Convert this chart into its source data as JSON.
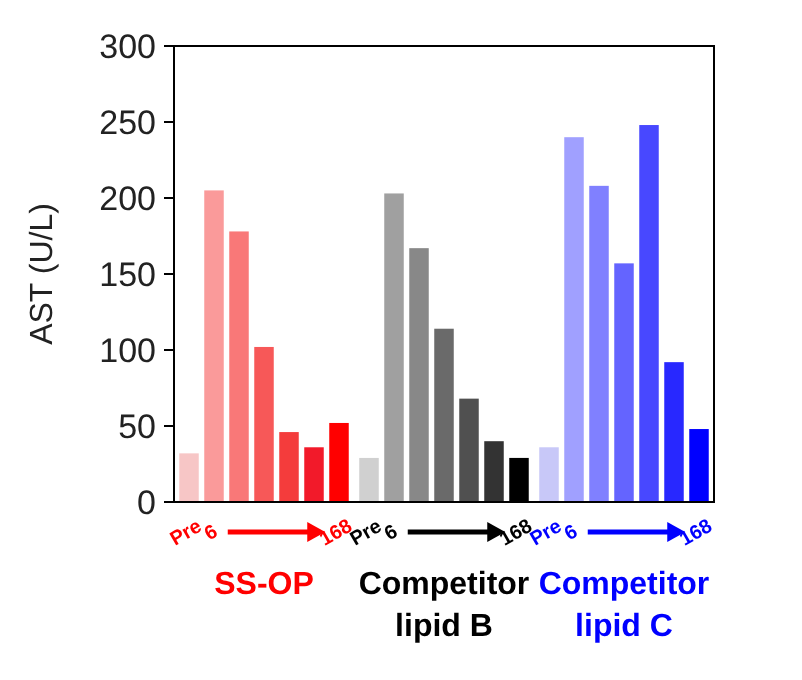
{
  "chart_data": [
    {
      "type": "bar",
      "ylabel": "AST (U/L)",
      "xlabel": "SS-OP",
      "categories": [
        "Pre",
        "6",
        null,
        null,
        null,
        null,
        "168"
      ],
      "values": [
        32,
        205,
        178,
        102,
        46,
        36,
        52
      ],
      "colors": [
        "#f7c6c6",
        "#fa9a9a",
        "#f97878",
        "#f75858",
        "#f43c3c",
        "#f21a2a",
        "#ff0000"
      ],
      "ylim": [
        0,
        300
      ],
      "yticks": [
        0,
        50,
        100,
        150,
        200,
        250,
        300
      ]
    },
    {
      "type": "bar",
      "xlabel": "Competitor lipid B",
      "categories": [
        "Pre",
        "6",
        null,
        null,
        null,
        null,
        "168"
      ],
      "values": [
        29,
        203,
        167,
        114,
        68,
        40,
        29
      ],
      "colors": [
        "#d0d0d0",
        "#a0a0a0",
        "#888888",
        "#6a6a6a",
        "#505050",
        "#333333",
        "#000000"
      ],
      "ylim": [
        0,
        300
      ],
      "tick_labels": "x"
    },
    {
      "type": "bar",
      "xlabel": "Competitor lipid C",
      "categories": [
        "Pre",
        "6",
        null,
        null,
        null,
        null,
        "168"
      ],
      "values": [
        36,
        240,
        208,
        157,
        248,
        92,
        48
      ],
      "colors": [
        "#c8c8f8",
        "#a0a0ff",
        "#8080ff",
        "#6464ff",
        "#4848ff",
        "#2828ff",
        "#0000ff"
      ],
      "ylim": [
        0,
        300
      ],
      "tick_labels": "x"
    }
  ]
}
